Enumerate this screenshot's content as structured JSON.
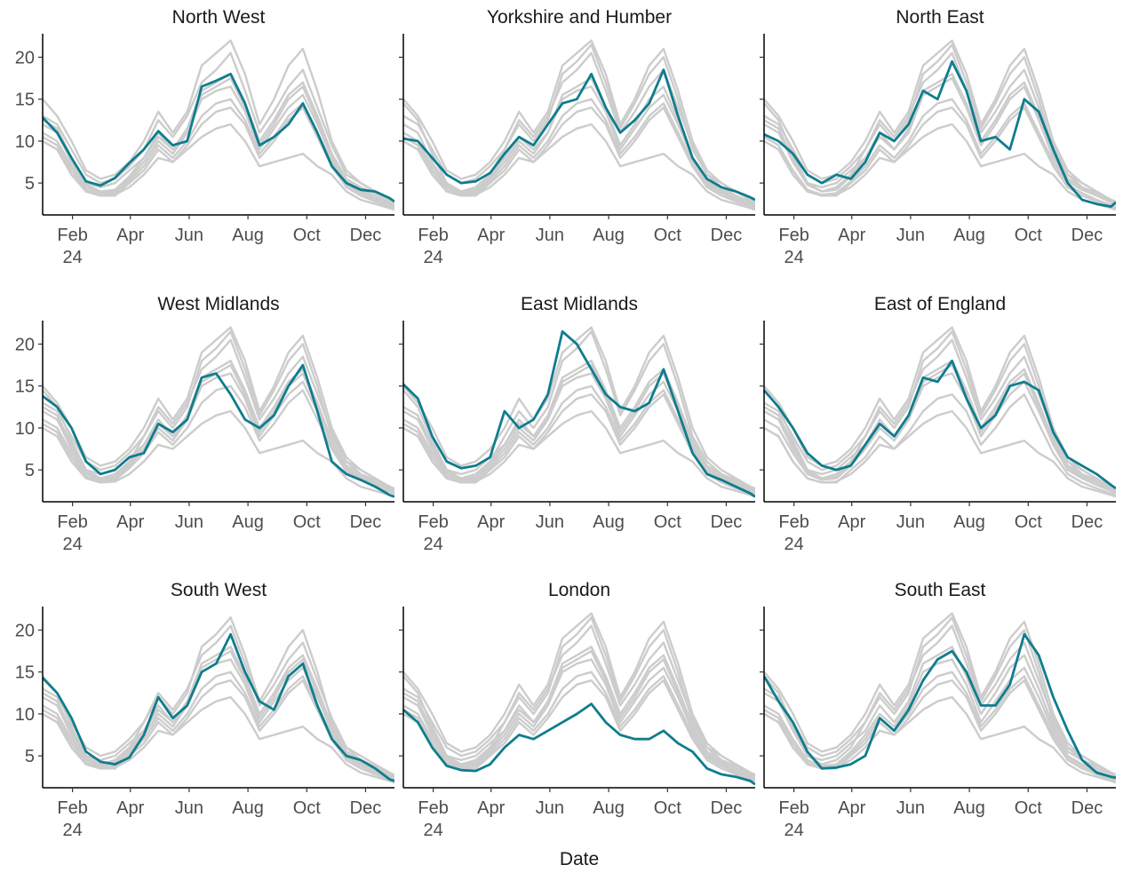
{
  "chart_data": {
    "type": "line",
    "xlabel": "Date",
    "ylabel": "",
    "ylim": [
      1.2,
      22.8
    ],
    "xlim_days": [
      0,
      365
    ],
    "y_ticks": [
      5,
      10,
      15,
      20
    ],
    "x_ticks": [
      {
        "label": "Feb",
        "sub": "24",
        "day": 31
      },
      {
        "label": "Apr",
        "sub": "",
        "day": 91
      },
      {
        "label": "Jun",
        "sub": "",
        "day": 152
      },
      {
        "label": "Aug",
        "sub": "",
        "day": 213
      },
      {
        "label": "Oct",
        "sub": "",
        "day": 274
      },
      {
        "label": "Dec",
        "sub": "",
        "day": 335
      }
    ],
    "grid": false,
    "legend": "none",
    "colors": {
      "highlight": "#0e7d8e",
      "other": "#cccccc",
      "axis": "#000000"
    },
    "x": [
      0,
      15,
      30,
      45,
      60,
      75,
      90,
      105,
      120,
      135,
      150,
      165,
      180,
      195,
      210,
      225,
      240,
      255,
      270,
      285,
      300,
      315,
      330,
      345,
      360,
      365
    ],
    "panels": [
      {
        "name": "North West",
        "values": [
          12.8,
          11.0,
          8.0,
          5.2,
          4.7,
          5.6,
          7.4,
          9.0,
          11.2,
          9.5,
          10.0,
          16.5,
          17.2,
          18.0,
          14.5,
          9.5,
          10.5,
          12.0,
          14.5,
          11.0,
          7.0,
          5.0,
          4.2,
          4.0,
          3.2,
          2.8
        ]
      },
      {
        "name": "Yorkshire and Humber",
        "values": [
          10.3,
          10.0,
          8.0,
          6.0,
          5.0,
          5.2,
          6.2,
          8.5,
          10.5,
          9.5,
          12.0,
          14.5,
          15.0,
          18.0,
          14.0,
          11.0,
          12.5,
          14.5,
          18.5,
          13.0,
          8.0,
          5.5,
          4.5,
          4.0,
          3.3,
          3.0
        ]
      },
      {
        "name": "North East",
        "values": [
          10.8,
          10.0,
          8.5,
          6.0,
          5.0,
          6.0,
          5.5,
          7.5,
          11.0,
          10.0,
          12.0,
          16.0,
          15.0,
          19.5,
          16.0,
          10.0,
          10.5,
          9.0,
          15.0,
          13.5,
          9.0,
          5.0,
          3.0,
          2.5,
          2.2,
          2.7
        ]
      },
      {
        "name": "West Midlands",
        "values": [
          13.8,
          12.5,
          10.0,
          6.0,
          4.5,
          5.0,
          6.5,
          7.0,
          10.5,
          9.5,
          11.0,
          16.0,
          16.5,
          14.0,
          11.0,
          10.0,
          11.5,
          15.0,
          17.5,
          12.0,
          6.0,
          4.5,
          3.8,
          3.0,
          2.0,
          1.8
        ]
      },
      {
        "name": "East Midlands",
        "values": [
          15.2,
          13.5,
          9.0,
          6.0,
          5.2,
          5.5,
          6.5,
          12.0,
          10.0,
          11.0,
          14.0,
          21.5,
          20.0,
          17.0,
          14.0,
          12.5,
          12.0,
          13.0,
          17.0,
          12.0,
          7.0,
          4.5,
          3.8,
          3.0,
          2.2,
          1.8
        ]
      },
      {
        "name": "East of England",
        "values": [
          14.5,
          12.5,
          10.0,
          7.0,
          5.5,
          5.0,
          5.5,
          8.0,
          10.5,
          9.0,
          11.5,
          16.0,
          15.5,
          18.0,
          13.5,
          10.0,
          11.5,
          15.0,
          15.5,
          14.5,
          9.5,
          6.5,
          5.5,
          4.5,
          3.2,
          2.8
        ]
      },
      {
        "name": "South West",
        "values": [
          14.3,
          12.5,
          9.5,
          5.5,
          4.3,
          4.0,
          4.8,
          7.5,
          12.0,
          9.5,
          11.0,
          15.0,
          16.0,
          19.5,
          15.0,
          11.5,
          10.5,
          14.5,
          16.0,
          11.0,
          7.0,
          5.0,
          4.5,
          3.5,
          2.2,
          2.0
        ]
      },
      {
        "name": "London",
        "values": [
          10.5,
          9.0,
          6.0,
          3.8,
          3.3,
          3.2,
          4.0,
          6.0,
          7.5,
          7.0,
          8.0,
          9.0,
          10.0,
          11.2,
          9.0,
          7.5,
          7.0,
          7.0,
          8.0,
          6.5,
          5.5,
          3.5,
          2.8,
          2.5,
          2.0,
          1.6
        ]
      },
      {
        "name": "South East",
        "values": [
          14.5,
          11.5,
          9.0,
          5.5,
          3.5,
          3.6,
          4.0,
          5.0,
          9.5,
          8.0,
          10.5,
          14.0,
          16.5,
          17.5,
          15.0,
          11.0,
          11.0,
          13.5,
          19.5,
          17.0,
          12.0,
          8.0,
          4.5,
          3.0,
          2.5,
          2.4
        ]
      }
    ],
    "background_series": [
      [
        14.5,
        12.5,
        8.5,
        5.0,
        4.0,
        4.5,
        6.0,
        9.0,
        12.0,
        10.0,
        12.5,
        18.0,
        19.5,
        21.5,
        17.0,
        11.5,
        14.5,
        18.0,
        20.0,
        15.0,
        9.0,
        6.0,
        4.5,
        3.5,
        2.8,
        2.5
      ],
      [
        12.5,
        11.5,
        8.0,
        5.0,
        4.5,
        5.0,
        6.5,
        8.0,
        11.0,
        9.0,
        11.5,
        16.0,
        17.0,
        18.0,
        14.5,
        10.0,
        12.5,
        15.5,
        17.0,
        13.0,
        8.5,
        5.5,
        4.5,
        3.8,
        3.0,
        2.6
      ],
      [
        11.0,
        10.0,
        7.0,
        4.5,
        3.8,
        4.0,
        5.5,
        7.5,
        10.0,
        8.5,
        11.0,
        15.0,
        16.0,
        16.5,
        13.5,
        9.0,
        11.5,
        14.0,
        15.5,
        12.0,
        8.0,
        5.0,
        4.0,
        3.2,
        2.5,
        2.2
      ],
      [
        10.0,
        9.0,
        6.0,
        4.0,
        3.5,
        3.5,
        5.0,
        6.5,
        9.0,
        7.5,
        9.5,
        12.0,
        13.5,
        14.0,
        12.0,
        8.0,
        10.0,
        12.5,
        14.0,
        10.5,
        7.0,
        4.5,
        3.5,
        2.8,
        2.2,
        2.0
      ],
      [
        13.0,
        12.0,
        9.0,
        6.0,
        5.0,
        5.5,
        7.0,
        9.0,
        12.5,
        10.5,
        13.0,
        17.0,
        18.5,
        20.5,
        16.0,
        11.0,
        13.5,
        16.5,
        18.5,
        14.0,
        9.5,
        6.0,
        5.0,
        4.0,
        3.0,
        2.7
      ],
      [
        10.5,
        9.5,
        6.5,
        4.2,
        3.6,
        3.8,
        5.2,
        7.0,
        9.5,
        8.0,
        10.0,
        13.0,
        14.5,
        15.0,
        12.5,
        8.5,
        10.5,
        13.0,
        14.5,
        11.0,
        7.5,
        4.8,
        3.8,
        3.0,
        2.4,
        2.1
      ],
      [
        15.0,
        13.0,
        10.0,
        6.5,
        5.5,
        6.0,
        7.5,
        10.0,
        13.5,
        11.0,
        13.5,
        19.0,
        20.5,
        22.0,
        18.0,
        12.0,
        15.0,
        19.0,
        21.0,
        16.0,
        10.0,
        6.5,
        5.0,
        4.0,
        3.0,
        2.8
      ],
      [
        10.0,
        9.0,
        6.0,
        4.0,
        3.5,
        3.6,
        4.5,
        6.0,
        8.0,
        7.5,
        9.0,
        10.5,
        11.5,
        12.0,
        10.0,
        7.0,
        7.5,
        8.0,
        8.5,
        7.0,
        6.0,
        4.0,
        3.0,
        2.5,
        2.0,
        1.8
      ],
      [
        12.0,
        11.0,
        7.5,
        4.8,
        4.0,
        4.2,
        5.8,
        8.0,
        10.5,
        9.0,
        11.0,
        15.5,
        16.5,
        17.5,
        14.0,
        9.5,
        12.0,
        15.0,
        16.5,
        12.5,
        8.0,
        5.2,
        4.2,
        3.5,
        2.7,
        2.4
      ]
    ]
  }
}
